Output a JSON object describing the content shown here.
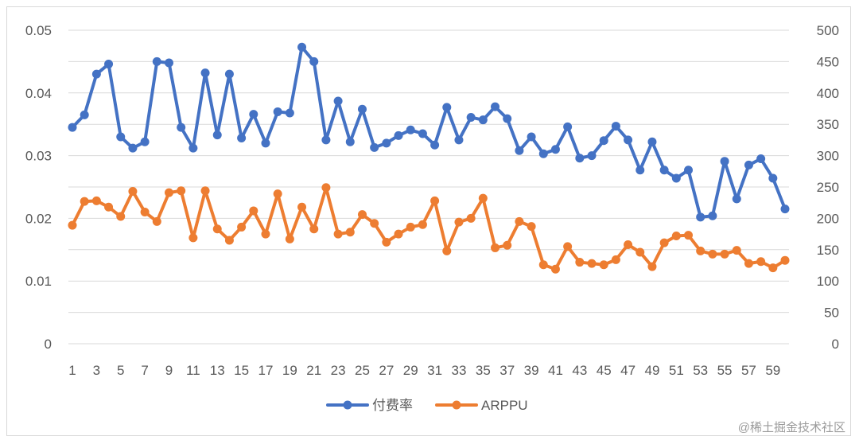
{
  "watermark": "@稀土掘金技术社区",
  "chart_data": {
    "type": "line",
    "x": [
      1,
      2,
      3,
      4,
      5,
      6,
      7,
      8,
      9,
      10,
      11,
      12,
      13,
      14,
      15,
      16,
      17,
      18,
      19,
      20,
      21,
      22,
      23,
      24,
      25,
      26,
      27,
      28,
      29,
      30,
      31,
      32,
      33,
      34,
      35,
      36,
      37,
      38,
      39,
      40,
      41,
      42,
      43,
      44,
      45,
      46,
      47,
      48,
      49,
      50,
      51,
      52,
      53,
      54,
      55,
      56,
      57,
      58,
      59,
      60
    ],
    "x_tick_labels": [
      "1",
      "3",
      "5",
      "7",
      "9",
      "11",
      "13",
      "15",
      "17",
      "19",
      "21",
      "23",
      "25",
      "27",
      "29",
      "31",
      "33",
      "35",
      "37",
      "39",
      "41",
      "43",
      "45",
      "47",
      "49",
      "51",
      "53",
      "55",
      "57",
      "59"
    ],
    "y_left": {
      "ylim": [
        0,
        0.05
      ],
      "ticks": [
        "0",
        "0.01",
        "0.02",
        "0.03",
        "0.04",
        "0.05"
      ]
    },
    "y_right": {
      "ylim": [
        0,
        500
      ],
      "ticks": [
        "0",
        "50",
        "100",
        "150",
        "200",
        "250",
        "300",
        "350",
        "400",
        "450",
        "500"
      ]
    },
    "grid": "horizontal",
    "legend_position": "bottom",
    "series": [
      {
        "name": "付费率",
        "axis": "left",
        "color": "#4472C4",
        "values": [
          0.0345,
          0.0365,
          0.043,
          0.0446,
          0.033,
          0.0312,
          0.0322,
          0.045,
          0.0448,
          0.0345,
          0.0312,
          0.0432,
          0.0333,
          0.043,
          0.0328,
          0.0366,
          0.032,
          0.037,
          0.0368,
          0.0473,
          0.045,
          0.0325,
          0.0387,
          0.0322,
          0.0374,
          0.0313,
          0.032,
          0.0332,
          0.0341,
          0.0335,
          0.0317,
          0.0377,
          0.0325,
          0.0361,
          0.0357,
          0.0378,
          0.0359,
          0.0308,
          0.033,
          0.0303,
          0.031,
          0.0346,
          0.0296,
          0.03,
          0.0324,
          0.0347,
          0.0325,
          0.0277,
          0.0322,
          0.0277,
          0.0264,
          0.0277,
          0.0202,
          0.0204,
          0.0291,
          0.0231,
          0.0285,
          0.0295,
          0.0264,
          0.0215
        ]
      },
      {
        "name": "ARPPU",
        "axis": "right",
        "color": "#ED7D31",
        "values": [
          189,
          227,
          228,
          218,
          203,
          243,
          210,
          195,
          241,
          244,
          169,
          244,
          183,
          165,
          186,
          212,
          175,
          239,
          167,
          218,
          183,
          249,
          175,
          178,
          206,
          192,
          162,
          175,
          186,
          190,
          228,
          148,
          194,
          200,
          232,
          153,
          157,
          195,
          187,
          126,
          119,
          155,
          130,
          128,
          126,
          134,
          158,
          146,
          123,
          161,
          172,
          173,
          148,
          143,
          143,
          149,
          128,
          131,
          121,
          133
        ]
      }
    ]
  }
}
